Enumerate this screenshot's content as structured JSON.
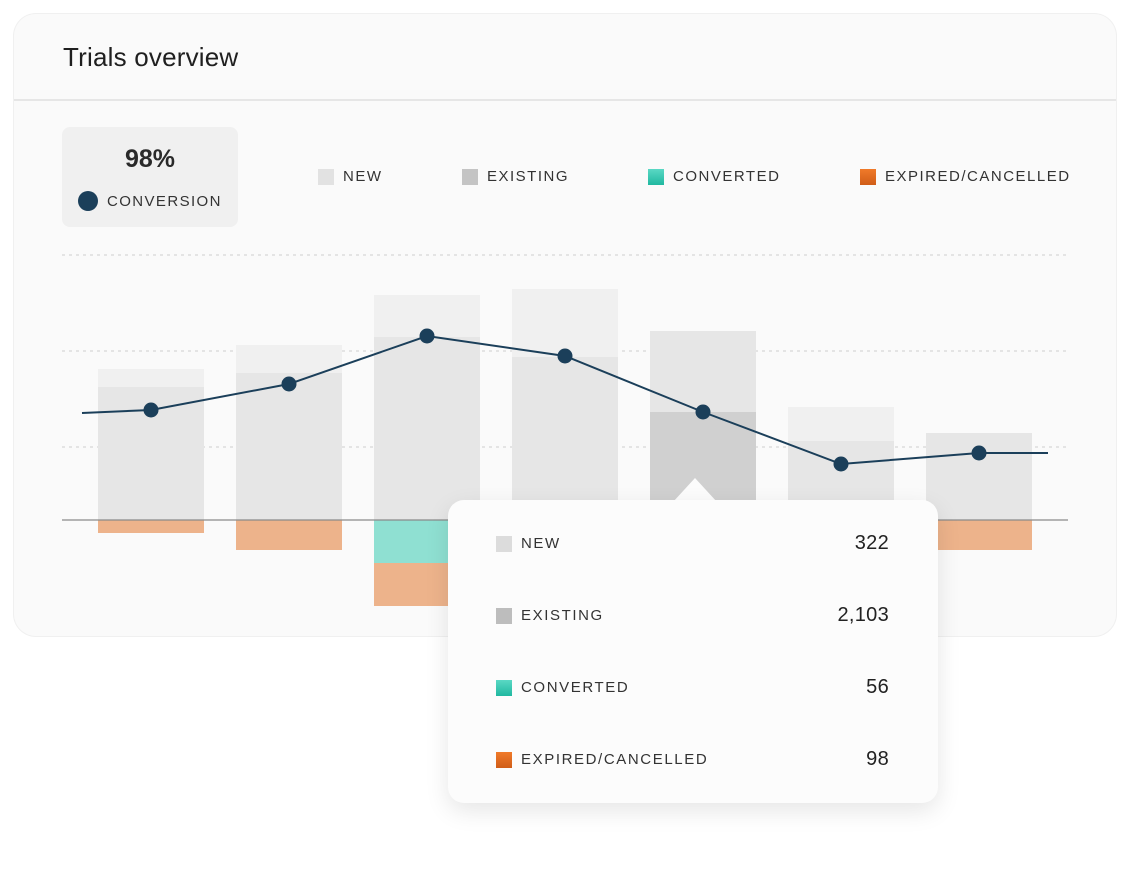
{
  "header": {
    "title": "Trials overview"
  },
  "kpi": {
    "value": "98%",
    "label": "CONVERSION",
    "color": "#1b3f5a"
  },
  "legend": [
    {
      "label": "NEW",
      "color": "#e2e2e2"
    },
    {
      "label": "EXISTING",
      "color": "#c4c4c4"
    },
    {
      "label": "CONVERTED",
      "color": "#2cc4ad"
    },
    {
      "label": "EXPIRED/CANCELLED",
      "color": "#e06a1e"
    }
  ],
  "tooltip": {
    "rows": [
      {
        "label": "NEW",
        "value": "322",
        "color": "#dcdcdc"
      },
      {
        "label": "EXISTING",
        "value": "2,103",
        "color": "#bdbdbd"
      },
      {
        "label": "CONVERTED",
        "value": "56",
        "color": "#2cc4ad"
      },
      {
        "label": "EXPIRED/CANCELLED",
        "value": "98",
        "color": "#d9641c"
      }
    ]
  },
  "chart_data": {
    "type": "bar",
    "stacked": true,
    "grid": true,
    "highlighted_index": 4,
    "ylim": [
      -100,
      265
    ],
    "series": [
      {
        "name": "EXISTING",
        "values": [
          133,
          147,
          183,
          163,
          108,
          79,
          87
        ],
        "color": "#e6e6e6"
      },
      {
        "name": "NEW",
        "values": [
          18,
          28,
          42,
          68,
          81,
          34,
          0
        ],
        "color": "#f0f0f0"
      },
      {
        "name": "CONVERTED",
        "values": [
          0,
          0,
          -43,
          0,
          0,
          0,
          0
        ],
        "color": "#8fe0d2"
      },
      {
        "name": "EXPIRED/CANCELLED",
        "values": [
          -13,
          -30,
          -43,
          0,
          0,
          0,
          -30
        ],
        "color": "#edb38b"
      }
    ],
    "line": {
      "name": "CONVERSION",
      "values": [
        110,
        136,
        184,
        164,
        108,
        56,
        67
      ],
      "lead_in": 107,
      "lead_out": 67,
      "color": "#1b3f5a"
    }
  }
}
